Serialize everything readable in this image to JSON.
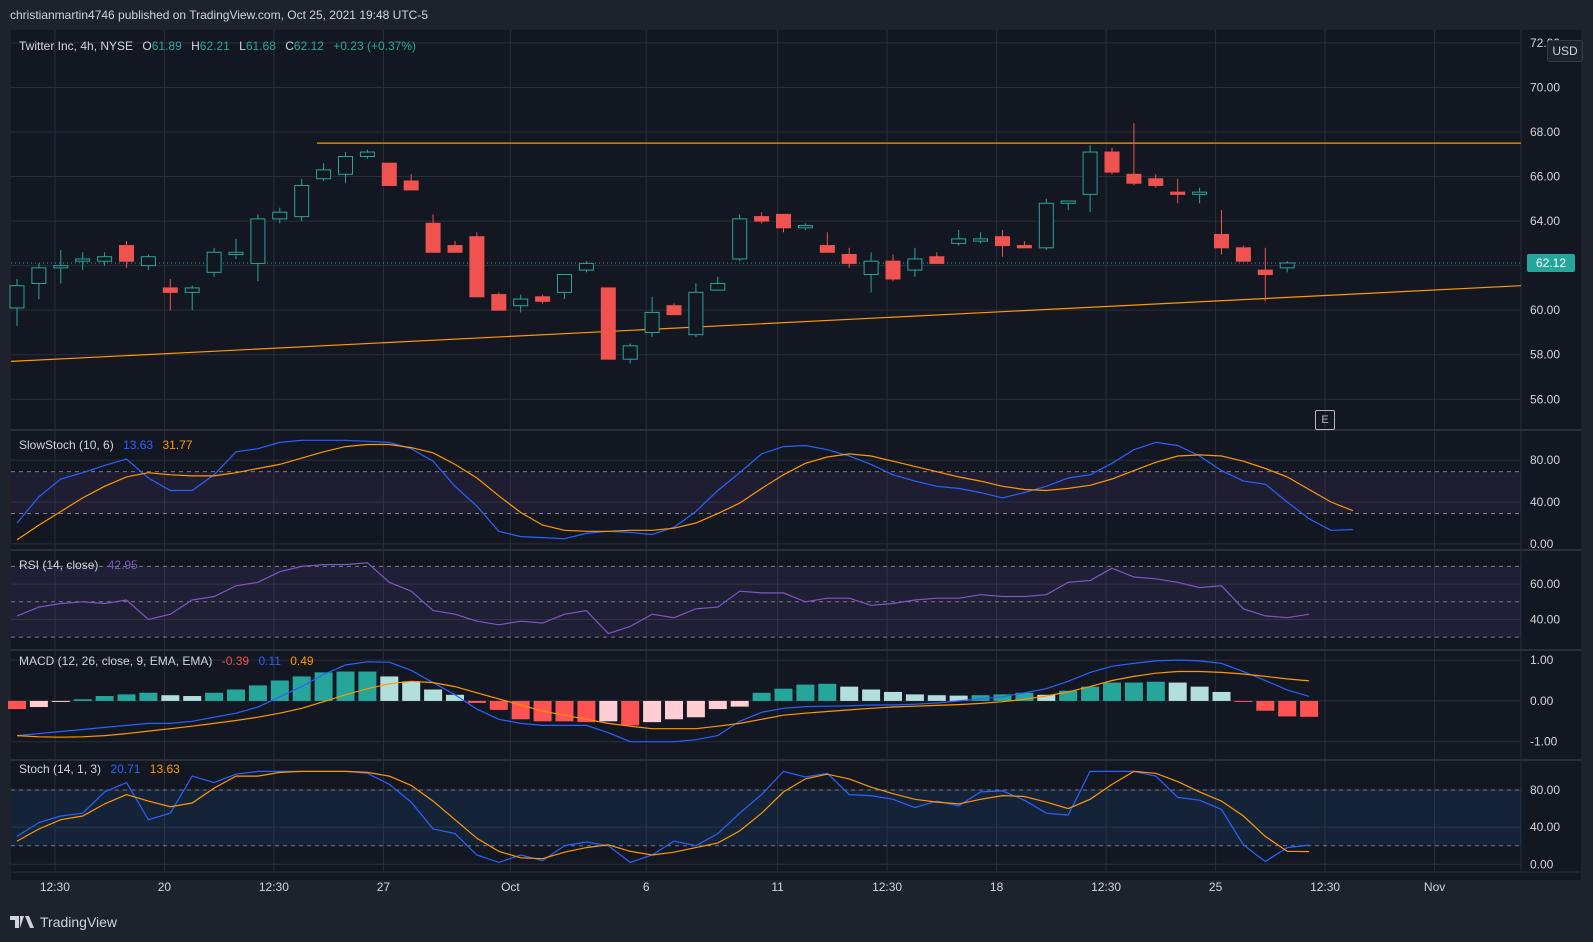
{
  "header": {
    "publisher_line": "christianmartin4746 published on TradingView.com, Oct 25, 2021 19:48 UTC-5"
  },
  "footer": {
    "brand": "TradingView"
  },
  "colors": {
    "bg": "#131722",
    "panel_bg": "#141823",
    "up": "#26a69a",
    "down": "#ef5350",
    "blue": "#2962ff",
    "orange": "#ff9800",
    "purple": "#7e57c2",
    "grid": "#2a2e39"
  },
  "main_legend": {
    "symbol": "Twitter Inc, 4h, NYSE",
    "o_label": "O",
    "o": "61.89",
    "h_label": "H",
    "h": "62.21",
    "l_label": "L",
    "l": "61.68",
    "c_label": "C",
    "c": "62.12",
    "change": "+0.23 (+0.37%)"
  },
  "currency_button": "USD",
  "earnings_marker": "E",
  "last_price": "62.12",
  "chart_data": [
    {
      "type": "candlestick",
      "title": "Twitter Inc, 4h, NYSE",
      "y_ticks": [
        "56.00",
        "58.00",
        "60.00",
        "62.00",
        "64.00",
        "66.00",
        "68.00",
        "70.00",
        "72.00"
      ],
      "ylim": [
        54.8,
        72.4
      ],
      "x_ticks": [
        "12:30",
        "20",
        "12:30",
        "27",
        "Oct",
        "6",
        "11",
        "12:30",
        "18",
        "12:30",
        "25",
        "12:30",
        "Nov"
      ],
      "candles": [
        [
          60.1,
          61.4,
          59.3,
          61.1
        ],
        [
          61.2,
          62.1,
          60.5,
          61.9
        ],
        [
          61.9,
          62.7,
          61.2,
          62.0
        ],
        [
          62.2,
          62.6,
          61.8,
          62.3
        ],
        [
          62.2,
          62.6,
          62.0,
          62.4
        ],
        [
          62.9,
          63.1,
          61.9,
          62.2
        ],
        [
          62.0,
          62.5,
          61.8,
          62.4
        ],
        [
          61.0,
          61.4,
          60.0,
          60.8
        ],
        [
          60.8,
          61.1,
          60.0,
          61.0
        ],
        [
          61.7,
          62.8,
          61.5,
          62.6
        ],
        [
          62.5,
          63.2,
          62.3,
          62.6
        ],
        [
          62.1,
          64.3,
          61.3,
          64.1
        ],
        [
          64.1,
          64.6,
          63.9,
          64.4
        ],
        [
          64.2,
          65.9,
          64.0,
          65.6
        ],
        [
          65.9,
          66.6,
          65.8,
          66.3
        ],
        [
          66.1,
          67.1,
          65.7,
          66.9
        ],
        [
          66.9,
          67.2,
          66.8,
          67.1
        ],
        [
          66.6,
          66.6,
          65.6,
          65.6
        ],
        [
          65.8,
          66.1,
          65.4,
          65.4
        ],
        [
          63.9,
          64.3,
          62.6,
          62.6
        ],
        [
          62.9,
          63.1,
          62.6,
          62.6
        ],
        [
          63.3,
          63.5,
          60.6,
          60.6
        ],
        [
          60.7,
          60.8,
          60.0,
          60.0
        ],
        [
          60.2,
          60.7,
          59.9,
          60.5
        ],
        [
          60.6,
          60.7,
          60.3,
          60.4
        ],
        [
          60.8,
          61.6,
          60.5,
          61.6
        ],
        [
          61.8,
          62.2,
          61.7,
          62.1
        ],
        [
          61.0,
          61.0,
          57.8,
          57.8
        ],
        [
          57.8,
          58.5,
          57.6,
          58.4
        ],
        [
          59.0,
          60.6,
          58.8,
          59.9
        ],
        [
          60.2,
          60.3,
          59.8,
          59.8
        ],
        [
          58.9,
          61.2,
          58.8,
          60.8
        ],
        [
          60.9,
          61.5,
          60.9,
          61.2
        ],
        [
          62.3,
          64.3,
          62.2,
          64.1
        ],
        [
          64.2,
          64.4,
          63.9,
          64.0
        ],
        [
          64.3,
          64.3,
          63.5,
          63.7
        ],
        [
          63.7,
          63.9,
          63.6,
          63.8
        ],
        [
          62.9,
          63.5,
          62.6,
          62.6
        ],
        [
          62.5,
          62.8,
          61.9,
          62.1
        ],
        [
          61.6,
          62.6,
          60.8,
          62.2
        ],
        [
          62.2,
          62.5,
          61.3,
          61.4
        ],
        [
          61.8,
          62.8,
          61.5,
          62.3
        ],
        [
          62.4,
          62.6,
          62.1,
          62.1
        ],
        [
          63.0,
          63.6,
          62.9,
          63.2
        ],
        [
          63.1,
          63.5,
          63.0,
          63.2
        ],
        [
          63.3,
          63.6,
          62.4,
          62.9
        ],
        [
          62.9,
          63.1,
          62.8,
          62.8
        ],
        [
          62.8,
          65.0,
          62.7,
          64.8
        ],
        [
          64.8,
          64.9,
          64.5,
          64.9
        ],
        [
          65.2,
          67.4,
          64.4,
          67.1
        ],
        [
          67.1,
          67.3,
          66.1,
          66.2
        ],
        [
          66.1,
          68.4,
          65.6,
          65.7
        ],
        [
          65.9,
          66.1,
          65.5,
          65.6
        ],
        [
          65.3,
          65.9,
          64.8,
          65.2
        ],
        [
          65.2,
          65.5,
          64.8,
          65.3
        ],
        [
          63.4,
          64.5,
          62.5,
          62.8
        ],
        [
          62.8,
          62.9,
          62.2,
          62.2
        ],
        [
          61.8,
          62.8,
          60.4,
          61.6
        ],
        [
          61.9,
          62.2,
          61.7,
          62.12
        ]
      ],
      "resistance_level": 67.5,
      "support_line_start": 57.7,
      "support_line_end": 61.1,
      "last_price": 62.12
    },
    {
      "type": "line",
      "title": "SlowStoch (10, 6)",
      "legend_values": [
        "13.63",
        "31.77"
      ],
      "y_ticks": [
        "0.00",
        "40.00",
        "80.00"
      ],
      "ylim": [
        -2,
        105
      ],
      "bands": [
        29,
        69
      ],
      "series": [
        {
          "name": "%K",
          "color": "#2962ff",
          "values": [
            20,
            45,
            62,
            68,
            75,
            81,
            63,
            51,
            51,
            66,
            88,
            91,
            97,
            99,
            99,
            99,
            98,
            97,
            91,
            79,
            55,
            36,
            12,
            7,
            6,
            5,
            10,
            12,
            11,
            9,
            16,
            31,
            51,
            68,
            86,
            93,
            94,
            90,
            84,
            76,
            66,
            60,
            55,
            53,
            49,
            44,
            49,
            55,
            63,
            66,
            77,
            90,
            97,
            94,
            84,
            70,
            60,
            57,
            40,
            24,
            13,
            13.63
          ]
        },
        {
          "name": "%D",
          "color": "#ff9800",
          "values": [
            4,
            18,
            31,
            44,
            55,
            64,
            68,
            66,
            65,
            65,
            68,
            72,
            76,
            82,
            88,
            93,
            95,
            95,
            92,
            87,
            76,
            63,
            46,
            30,
            18,
            13,
            12,
            12,
            13,
            13,
            15,
            20,
            29,
            39,
            53,
            66,
            77,
            83,
            86,
            84,
            79,
            74,
            69,
            64,
            60,
            55,
            52,
            51,
            53,
            56,
            62,
            70,
            78,
            84,
            85,
            84,
            79,
            72,
            64,
            52,
            40,
            31.77
          ]
        }
      ]
    },
    {
      "type": "line",
      "title": "RSI (14, close)",
      "legend_values": [
        "42.95"
      ],
      "y_ticks": [
        "40.00",
        "60.00"
      ],
      "ylim": [
        25,
        77
      ],
      "bands": [
        30,
        50,
        70
      ],
      "series": [
        {
          "name": "RSI",
          "color": "#7e57c2",
          "values": [
            42,
            47,
            49,
            50,
            49,
            51,
            40,
            43,
            51,
            53,
            59,
            61,
            67,
            70,
            71,
            71,
            72,
            61,
            56,
            45,
            43,
            39,
            37,
            39,
            38,
            43,
            45,
            32,
            36,
            43,
            41,
            46,
            47,
            56,
            55,
            55,
            50,
            52,
            52,
            48,
            49,
            51,
            52,
            52,
            54,
            53,
            53,
            54,
            61,
            62,
            69,
            64,
            63,
            61,
            58,
            59,
            46,
            42,
            41,
            42.95
          ]
        }
      ]
    },
    {
      "type": "bar+line",
      "title": "MACD (12, 26, close, 9, EMA, EMA)",
      "legend_values": [
        "-0.39",
        "0.11",
        "0.49"
      ],
      "y_ticks": [
        "-1.00",
        "0.00",
        "1.00"
      ],
      "ylim": [
        -1.35,
        1.15
      ],
      "histogram": [
        -0.2,
        -0.15,
        -0.02,
        0.04,
        0.12,
        0.16,
        0.2,
        0.14,
        0.12,
        0.2,
        0.28,
        0.38,
        0.5,
        0.6,
        0.7,
        0.72,
        0.72,
        0.6,
        0.48,
        0.28,
        0.15,
        -0.05,
        -0.22,
        -0.45,
        -0.5,
        -0.5,
        -0.52,
        -0.5,
        -0.6,
        -0.52,
        -0.45,
        -0.4,
        -0.2,
        -0.14,
        0.2,
        0.3,
        0.4,
        0.42,
        0.35,
        0.28,
        0.22,
        0.16,
        0.14,
        0.13,
        0.14,
        0.16,
        0.2,
        0.15,
        0.25,
        0.35,
        0.45,
        0.45,
        0.47,
        0.45,
        0.35,
        0.22,
        -0.02,
        -0.24,
        -0.38,
        -0.39
      ],
      "series": [
        {
          "name": "MACD",
          "color": "#2962ff",
          "values": [
            -0.85,
            -0.8,
            -0.75,
            -0.7,
            -0.65,
            -0.6,
            -0.55,
            -0.55,
            -0.5,
            -0.4,
            -0.3,
            -0.15,
            0.1,
            0.35,
            0.65,
            0.88,
            0.96,
            0.95,
            0.75,
            0.45,
            0.15,
            -0.2,
            -0.45,
            -0.55,
            -0.6,
            -0.6,
            -0.6,
            -0.78,
            -1.0,
            -1.0,
            -1.0,
            -0.95,
            -0.85,
            -0.5,
            -0.28,
            -0.18,
            -0.14,
            -0.13,
            -0.12,
            -0.1,
            -0.1,
            -0.08,
            -0.05,
            0.0,
            0.05,
            0.1,
            0.2,
            0.3,
            0.48,
            0.7,
            0.85,
            0.92,
            0.98,
            1.0,
            0.98,
            0.92,
            0.72,
            0.5,
            0.27,
            0.11
          ]
        },
        {
          "name": "Signal",
          "color": "#ff9800",
          "values": [
            -0.85,
            -0.88,
            -0.89,
            -0.88,
            -0.85,
            -0.8,
            -0.74,
            -0.68,
            -0.62,
            -0.55,
            -0.48,
            -0.4,
            -0.3,
            -0.18,
            -0.02,
            0.15,
            0.3,
            0.42,
            0.48,
            0.45,
            0.35,
            0.2,
            0.05,
            -0.1,
            -0.25,
            -0.35,
            -0.45,
            -0.55,
            -0.62,
            -0.68,
            -0.68,
            -0.68,
            -0.62,
            -0.55,
            -0.45,
            -0.35,
            -0.3,
            -0.26,
            -0.22,
            -0.18,
            -0.15,
            -0.13,
            -0.11,
            -0.09,
            -0.06,
            -0.02,
            0.04,
            0.12,
            0.22,
            0.35,
            0.5,
            0.6,
            0.68,
            0.72,
            0.72,
            0.7,
            0.66,
            0.6,
            0.54,
            0.49
          ]
        }
      ]
    },
    {
      "type": "line",
      "title": "Stoch (14, 1, 3)",
      "legend_values": [
        "20.71",
        "13.63"
      ],
      "y_ticks": [
        "0.00",
        "40.00",
        "80.00"
      ],
      "ylim": [
        -4,
        108
      ],
      "bands": [
        20,
        80
      ],
      "series": [
        {
          "name": "%K",
          "color": "#2962ff",
          "values": [
            30,
            45,
            52,
            55,
            78,
            88,
            48,
            55,
            95,
            88,
            97,
            100,
            100,
            100,
            100,
            100,
            98,
            86,
            67,
            38,
            33,
            10,
            2,
            10,
            4,
            20,
            24,
            20,
            2,
            10,
            25,
            20,
            33,
            55,
            75,
            100,
            94,
            98,
            75,
            74,
            70,
            61,
            68,
            63,
            78,
            79,
            69,
            55,
            53,
            100,
            100,
            100,
            95,
            72,
            69,
            59,
            21,
            3,
            18,
            20.71
          ]
        },
        {
          "name": "%D",
          "color": "#ff9800",
          "values": [
            25,
            38,
            48,
            52,
            65,
            75,
            68,
            62,
            66,
            82,
            95,
            95,
            99,
            100,
            100,
            100,
            99,
            95,
            85,
            68,
            48,
            28,
            14,
            7,
            6,
            13,
            18,
            21,
            14,
            10,
            13,
            18,
            23,
            36,
            55,
            78,
            92,
            97,
            92,
            83,
            76,
            70,
            67,
            65,
            70,
            74,
            73,
            67,
            60,
            70,
            86,
            100,
            98,
            89,
            78,
            68,
            52,
            30,
            14,
            13.63
          ]
        }
      ]
    }
  ],
  "pane_labels": {
    "slowstoch": {
      "name": "SlowStoch (10, 6)"
    },
    "rsi": {
      "name": "RSI (14, close)"
    },
    "macd": {
      "name": "MACD (12, 26, close, 9, EMA, EMA)"
    },
    "stoch": {
      "name": "Stoch (14, 1, 3)"
    }
  }
}
